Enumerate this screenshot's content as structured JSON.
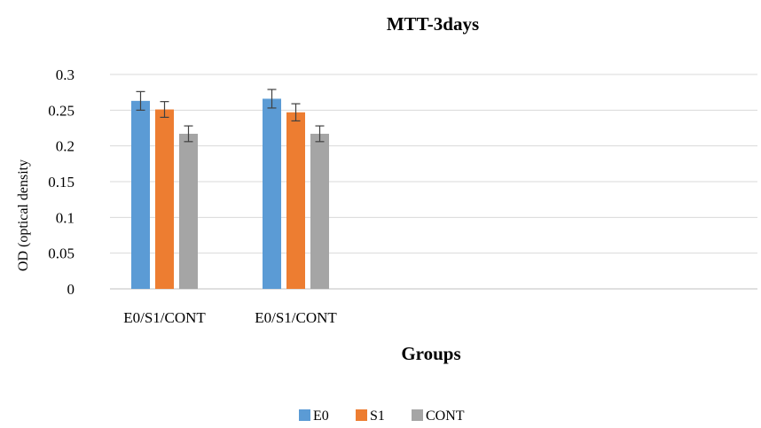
{
  "chart_data": {
    "type": "bar",
    "title": "MTT-3days",
    "xlabel": "Groups",
    "ylabel": "OD (optical density",
    "categories": [
      "E0/S1/CONT",
      "E0/S1/CONT"
    ],
    "series": [
      {
        "name": "E0",
        "values": [
          0.263,
          0.266
        ],
        "errors": [
          0.013,
          0.013
        ],
        "color": "#5b9bd5"
      },
      {
        "name": "S1",
        "values": [
          0.251,
          0.247
        ],
        "errors": [
          0.011,
          0.012
        ],
        "color": "#ed7d31"
      },
      {
        "name": "CONT",
        "values": [
          0.217,
          0.217
        ],
        "errors": [
          0.011,
          0.011
        ],
        "color": "#a5a5a5"
      }
    ],
    "ylim": [
      0,
      0.3
    ],
    "yticks": [
      "0",
      "0.05",
      "0.1",
      "0.15",
      "0.2",
      "0.25",
      "0.3"
    ],
    "grid": true,
    "legend": "bottom-center"
  }
}
